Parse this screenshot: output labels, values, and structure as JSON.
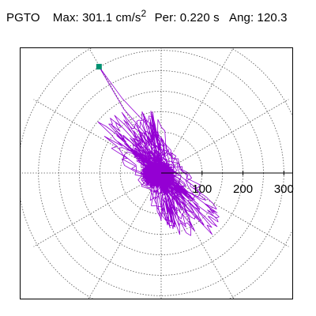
{
  "header": {
    "station": "PGTO",
    "max_label": "Max:",
    "max_value": "301.1",
    "max_unit": "cm/s",
    "max_unit_exp": "2",
    "period_label": "Per:",
    "period_value": "0.220 s",
    "angle_label": "Ang:",
    "angle_value": "120.3"
  },
  "chart_data": {
    "type": "scatter",
    "description_of_plot": "polar hodogram of horizontal ground acceleration",
    "radial_axis": {
      "ticks": [
        100,
        200,
        300
      ],
      "tick_labels": [
        "100",
        "200",
        "300"
      ],
      "max": 360,
      "angle_deg": 0
    },
    "radial_gridlines": [
      50,
      100,
      150,
      200,
      250,
      300,
      350
    ],
    "spoke_angles_deg": [
      0,
      30,
      60,
      90,
      120,
      150,
      180,
      210,
      240,
      270,
      300,
      330
    ],
    "grid": true,
    "peak": {
      "amplitude": 301.1,
      "angle_deg": 120.3,
      "units": "cm/s2"
    },
    "colors": {
      "trace": "#9400d3",
      "peak_marker": "#009070",
      "grid": "#555555",
      "axis": "#000000"
    }
  }
}
